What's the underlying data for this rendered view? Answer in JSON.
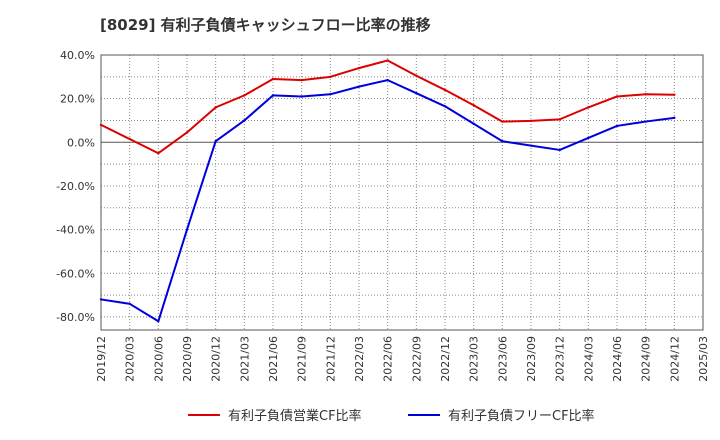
{
  "title": "[8029]  有利子負債キャッシュフロー比率の推移",
  "chart_data": {
    "type": "line",
    "title": "[8029]  有利子負債キャッシュフロー比率の推移",
    "xlabel": "",
    "ylabel": "",
    "ylim": [
      -0.86,
      0.4
    ],
    "ytick_values": [
      0.4,
      0.2,
      0.0,
      -0.2,
      -0.4,
      -0.6,
      -0.8
    ],
    "ytick_labels": [
      "40.0%",
      "20.0%",
      "0.0%",
      "-20.0%",
      "-40.0%",
      "-60.0%",
      "-80.0%"
    ],
    "categories": [
      "2019/12",
      "2020/03",
      "2020/06",
      "2020/09",
      "2020/12",
      "2021/03",
      "2021/06",
      "2021/09",
      "2021/12",
      "2022/03",
      "2022/06",
      "2022/09",
      "2022/12",
      "2023/03",
      "2023/06",
      "2023/09",
      "2023/12",
      "2024/03",
      "2024/06",
      "2024/09",
      "2024/12",
      "2025/03"
    ],
    "grid": true,
    "legend_position": "bottom",
    "series": [
      {
        "name": "有利子負債営業CF比率",
        "color": "#dd0000",
        "values": [
          0.08,
          0.015,
          -0.05,
          0.045,
          0.16,
          0.215,
          0.29,
          0.285,
          0.3,
          0.34,
          0.375,
          0.305,
          0.24,
          0.17,
          0.095,
          0.098,
          0.105,
          0.16,
          0.21,
          0.22,
          0.218,
          null
        ]
      },
      {
        "name": "有利子負債フリーCF比率",
        "color": "#0000dd",
        "values": [
          -0.72,
          -0.74,
          -0.82,
          -0.4,
          0.005,
          0.1,
          0.215,
          0.21,
          0.22,
          0.255,
          0.285,
          0.225,
          0.165,
          0.085,
          0.005,
          -0.015,
          -0.035,
          0.02,
          0.075,
          0.095,
          0.112,
          null
        ]
      }
    ]
  }
}
